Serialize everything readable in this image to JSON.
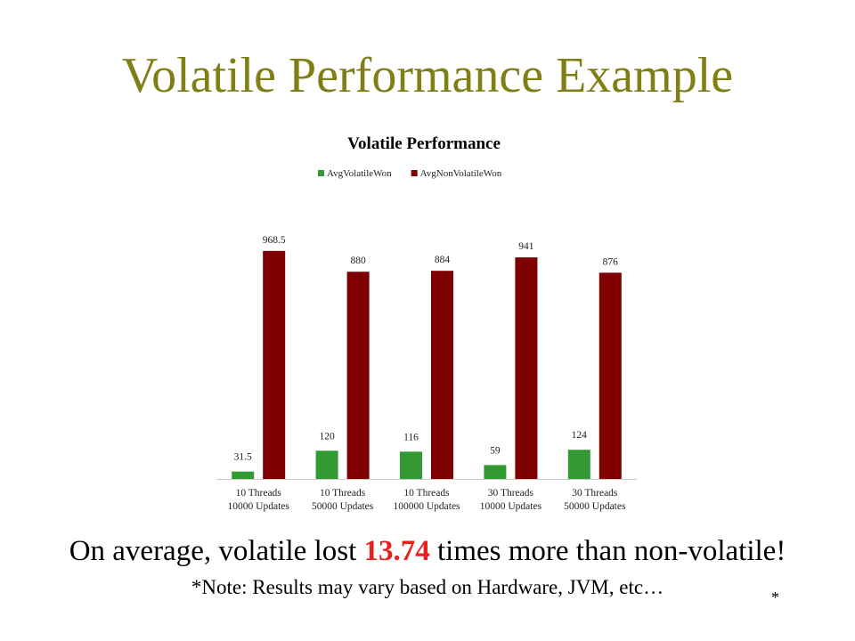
{
  "slide": {
    "title": "Volatile Performance Example",
    "summary_before": "On average, volatile lost ",
    "summary_highlight": "13.74",
    "summary_after": " times more than non-volatile!",
    "note": "*Note: Results may vary based on Hardware, JVM, etc…",
    "footnote_marker": "*",
    "highlight_color": "#e8201c",
    "title_color": "#7f7f16"
  },
  "chart_data": {
    "type": "bar",
    "title": "Volatile Performance",
    "xlabel": "",
    "ylabel": "",
    "ylim": [
      0,
      1100
    ],
    "grid": false,
    "legend_position": "top",
    "categories": [
      [
        "10 Threads",
        "10000 Updates"
      ],
      [
        "10 Threads",
        "50000 Updates"
      ],
      [
        "10 Threads",
        "100000 Updates"
      ],
      [
        "30 Threads",
        "10000 Updates"
      ],
      [
        "30 Threads",
        "50000 Updates"
      ]
    ],
    "series": [
      {
        "name": "AvgVolatileWon",
        "color": "#339933",
        "values": [
          31.5,
          120,
          116,
          59,
          124
        ]
      },
      {
        "name": "AvgNonVolatileWon",
        "color": "#7f0000",
        "values": [
          968.5,
          880,
          884,
          941,
          876
        ]
      }
    ]
  }
}
